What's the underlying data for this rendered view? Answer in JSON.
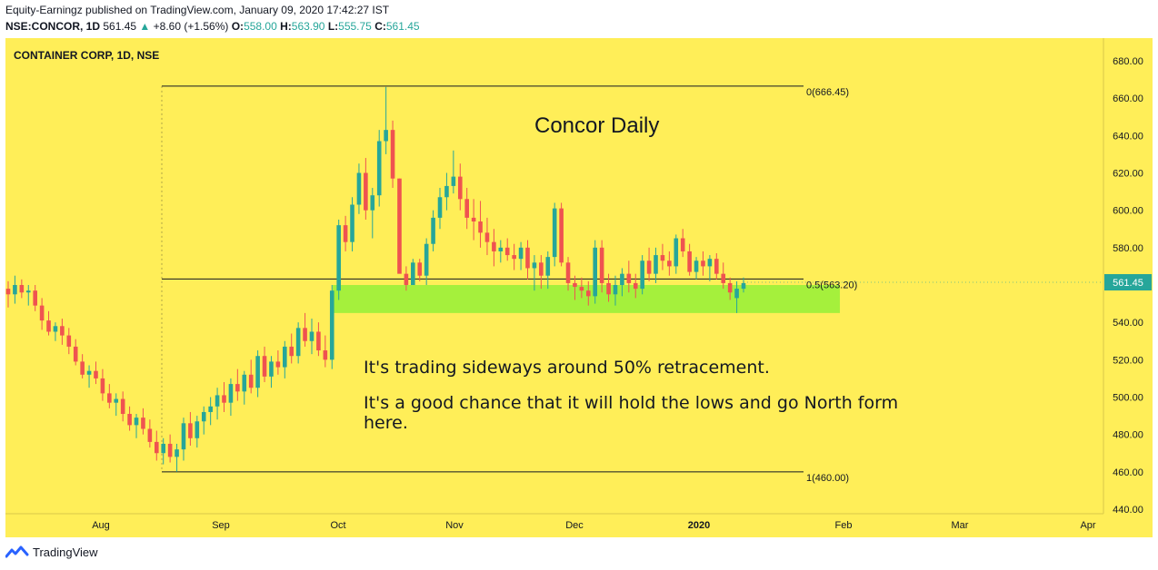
{
  "header": {
    "publisher_line": "Equity-Earningz published on TradingView.com, January 09, 2020 17:42:27 IST",
    "publisher": "Equity-Earningz",
    "symbol": "NSE:CONCOR, 1D",
    "last": "561.45",
    "change": "+8.60 (+1.56%)",
    "o_label": "O:",
    "o": "558.00",
    "h_label": "H:",
    "h": "563.90",
    "l_label": "L:",
    "l": "555.75",
    "c_label": "C:",
    "c": "561.45"
  },
  "footer": {
    "brand": "TradingView"
  },
  "chart_data": {
    "type": "candlestick",
    "title": "CONTAINER CORP, 1D, NSE",
    "annotation_title": "Concor Daily",
    "annotation_text_1": "It's trading sideways around 50% retracement.",
    "annotation_text_2a": "It's a good chance that it will hold the lows and go North form",
    "annotation_text_2b": "here.",
    "background": "#ffee58",
    "up_color": "#26a69a",
    "down_color": "#ef5350",
    "support_zone": {
      "color": "#a5f03c",
      "from": 545,
      "to": 560
    },
    "ylim": [
      440,
      690
    ],
    "yticks": [
      "680.00",
      "660.00",
      "640.00",
      "620.00",
      "600.00",
      "580.00",
      "560.00",
      "540.00",
      "520.00",
      "500.00",
      "480.00",
      "460.00",
      "440.00"
    ],
    "xticks": [
      {
        "label": "Aug",
        "x": 105
      },
      {
        "label": "Sep",
        "x": 237
      },
      {
        "label": "Oct",
        "x": 366
      },
      {
        "label": "Nov",
        "x": 494
      },
      {
        "label": "Dec",
        "x": 626
      },
      {
        "label": "2020",
        "x": 763
      },
      {
        "label": "Feb",
        "x": 922
      },
      {
        "label": "Mar",
        "x": 1050
      },
      {
        "label": "Apr",
        "x": 1191
      }
    ],
    "fib_levels": [
      {
        "label": "0(666.45)",
        "value": 666.45
      },
      {
        "label": "0.5(563.20)",
        "value": 563.2
      },
      {
        "label": "1(460.00)",
        "value": 460.0
      }
    ],
    "price_label": "561.45",
    "price_value": 561.45,
    "candles": [
      [
        558,
        562,
        548,
        555
      ],
      [
        555,
        565,
        550,
        560
      ],
      [
        560,
        563,
        553,
        556
      ],
      [
        556,
        560,
        549,
        557
      ],
      [
        557,
        560,
        546,
        549
      ],
      [
        549,
        553,
        536,
        541
      ],
      [
        541,
        546,
        533,
        535
      ],
      [
        535,
        540,
        530,
        538
      ],
      [
        538,
        542,
        528,
        533
      ],
      [
        533,
        537,
        523,
        527
      ],
      [
        527,
        531,
        517,
        519
      ],
      [
        519,
        523,
        510,
        512
      ],
      [
        512,
        517,
        505,
        514
      ],
      [
        514,
        519,
        507,
        510
      ],
      [
        510,
        515,
        498,
        502
      ],
      [
        502,
        507,
        494,
        497
      ],
      [
        497,
        502,
        490,
        499
      ],
      [
        499,
        503,
        487,
        491
      ],
      [
        491,
        495,
        482,
        485
      ],
      [
        485,
        491,
        478,
        489
      ],
      [
        489,
        494,
        480,
        483
      ],
      [
        483,
        488,
        473,
        476
      ],
      [
        476,
        482,
        466,
        470
      ],
      [
        470,
        478,
        464,
        475
      ],
      [
        475,
        480,
        465,
        468
      ],
      [
        468,
        475,
        460,
        472
      ],
      [
        472,
        489,
        466,
        486
      ],
      [
        486,
        492,
        474,
        478
      ],
      [
        478,
        490,
        473,
        487
      ],
      [
        487,
        495,
        480,
        492
      ],
      [
        492,
        500,
        485,
        495
      ],
      [
        495,
        505,
        488,
        501
      ],
      [
        501,
        508,
        492,
        497
      ],
      [
        497,
        510,
        490,
        507
      ],
      [
        507,
        515,
        498,
        503
      ],
      [
        503,
        514,
        496,
        512
      ],
      [
        512,
        520,
        502,
        505
      ],
      [
        505,
        525,
        500,
        522
      ],
      [
        522,
        527,
        508,
        511
      ],
      [
        511,
        522,
        505,
        519
      ],
      [
        519,
        525,
        512,
        516
      ],
      [
        516,
        530,
        510,
        527
      ],
      [
        527,
        534,
        518,
        522
      ],
      [
        522,
        540,
        518,
        537
      ],
      [
        537,
        545,
        527,
        530
      ],
      [
        530,
        542,
        523,
        535
      ],
      [
        535,
        540,
        522,
        525
      ],
      [
        525,
        533,
        516,
        520
      ],
      [
        520,
        560,
        515,
        557
      ],
      [
        557,
        595,
        552,
        592
      ],
      [
        592,
        597,
        578,
        583
      ],
      [
        583,
        607,
        578,
        603
      ],
      [
        603,
        625,
        598,
        620
      ],
      [
        620,
        628,
        595,
        600
      ],
      [
        600,
        612,
        585,
        608
      ],
      [
        608,
        643,
        602,
        637
      ],
      [
        637,
        666,
        630,
        643
      ],
      [
        643,
        648,
        612,
        617
      ],
      [
        617,
        617,
        567,
        566
      ],
      [
        566,
        570,
        557,
        560
      ],
      [
        560,
        574,
        560,
        572
      ],
      [
        572,
        574,
        562,
        565
      ],
      [
        565,
        585,
        560,
        582
      ],
      [
        582,
        600,
        578,
        596
      ],
      [
        596,
        612,
        590,
        607
      ],
      [
        607,
        620,
        600,
        613
      ],
      [
        613,
        632,
        609,
        618
      ],
      [
        618,
        625,
        600,
        606
      ],
      [
        606,
        612,
        590,
        596
      ],
      [
        596,
        606,
        584,
        594
      ],
      [
        594,
        605,
        580,
        588
      ],
      [
        588,
        596,
        576,
        583
      ],
      [
        583,
        590,
        570,
        578
      ],
      [
        578,
        584,
        572,
        580
      ],
      [
        580,
        585,
        573,
        576
      ],
      [
        576,
        582,
        568,
        574
      ],
      [
        574,
        583,
        568,
        580
      ],
      [
        580,
        584,
        563,
        569
      ],
      [
        569,
        576,
        557,
        572
      ],
      [
        572,
        576,
        558,
        565
      ],
      [
        565,
        578,
        558,
        575
      ],
      [
        575,
        604,
        570,
        601
      ],
      [
        601,
        604,
        570,
        572
      ],
      [
        572,
        575,
        557,
        561
      ],
      [
        561,
        565,
        552,
        559
      ],
      [
        559,
        564,
        553,
        557
      ],
      [
        557,
        562,
        549,
        554
      ],
      [
        554,
        584,
        550,
        580
      ],
      [
        580,
        584,
        556,
        561
      ],
      [
        561,
        566,
        551,
        555
      ],
      [
        555,
        565,
        549,
        560
      ],
      [
        560,
        569,
        554,
        566
      ],
      [
        566,
        573,
        556,
        561
      ],
      [
        561,
        566,
        553,
        558
      ],
      [
        558,
        576,
        555,
        573
      ],
      [
        573,
        580,
        562,
        566
      ],
      [
        566,
        580,
        561,
        576
      ],
      [
        576,
        582,
        568,
        573
      ],
      [
        573,
        578,
        565,
        570
      ],
      [
        570,
        587,
        566,
        585
      ],
      [
        585,
        590,
        575,
        578
      ],
      [
        578,
        582,
        565,
        567
      ],
      [
        567,
        575,
        563,
        573
      ],
      [
        573,
        578,
        565,
        570
      ],
      [
        570,
        576,
        562,
        574
      ],
      [
        574,
        577,
        563,
        566
      ],
      [
        566,
        572,
        558,
        561
      ],
      [
        561,
        564,
        552,
        556
      ],
      [
        553,
        562,
        545,
        558
      ],
      [
        558,
        564,
        556,
        561
      ]
    ]
  }
}
